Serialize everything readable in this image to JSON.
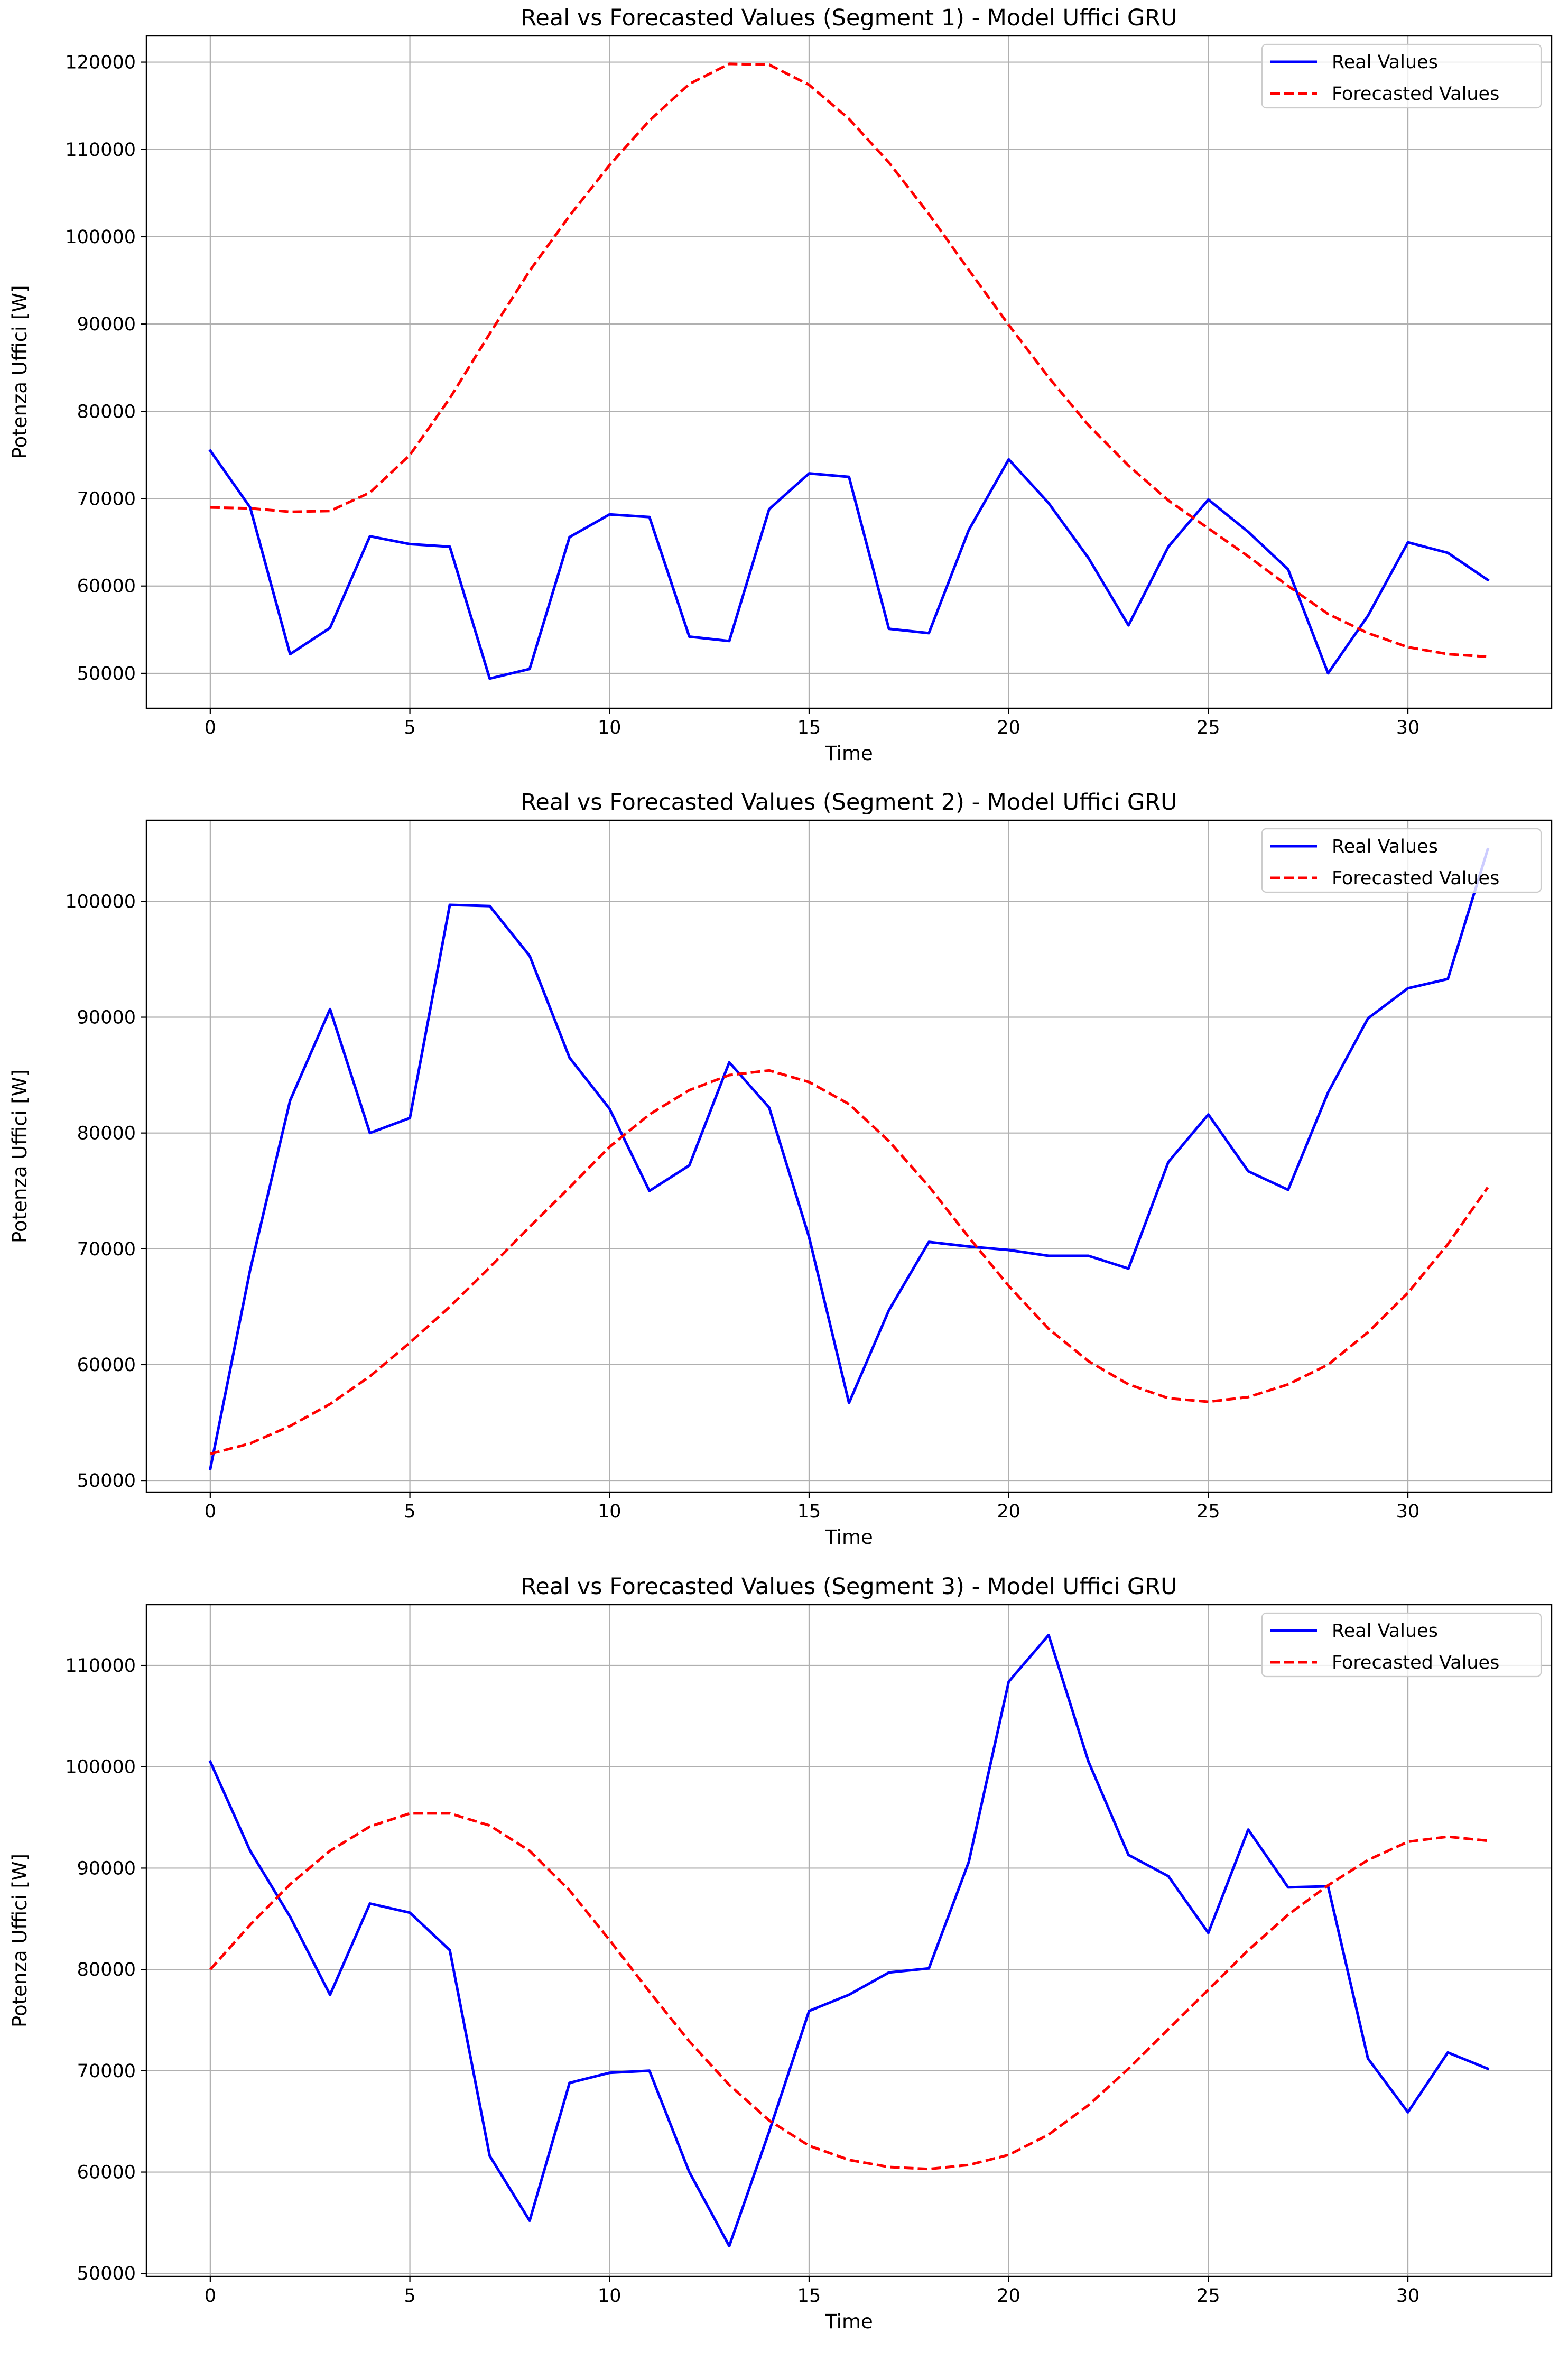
{
  "figure": {
    "colors": {
      "real": "#0000ff",
      "forecast": "#ff0000",
      "grid": "#b0b0b0",
      "axes": "#000000"
    }
  },
  "chart_data": [
    {
      "type": "line",
      "title": "Real vs Forecasted Values (Segment 1) - Model Uffici GRU",
      "xlabel": "Time",
      "ylabel": "Potenza Uffici [W]",
      "xlim": [
        -1.6,
        33.6
      ],
      "ylim": [
        46000,
        123000
      ],
      "xticks": [
        0,
        5,
        10,
        15,
        20,
        25,
        30
      ],
      "xtick_labels": [
        "0",
        "5",
        "10",
        "15",
        "20",
        "25",
        "30"
      ],
      "yticks": [
        50000,
        60000,
        70000,
        80000,
        90000,
        100000,
        110000,
        120000
      ],
      "ytick_labels": [
        "50000",
        "60000",
        "70000",
        "80000",
        "90000",
        "100000",
        "110000",
        "120000"
      ],
      "grid": true,
      "legend": "top-right",
      "x": [
        0,
        1,
        2,
        3,
        4,
        5,
        6,
        7,
        8,
        9,
        10,
        11,
        12,
        13,
        14,
        15,
        16,
        17,
        18,
        19,
        20,
        21,
        22,
        23,
        24,
        25,
        26,
        27,
        28,
        29,
        30,
        31,
        32
      ],
      "series": [
        {
          "name": "Real Values",
          "style": "solid",
          "values": [
            75500,
            69000,
            52200,
            55200,
            65700,
            64800,
            64500,
            49400,
            50500,
            65600,
            68200,
            67900,
            54200,
            53700,
            68800,
            72900,
            72500,
            55100,
            54600,
            66400,
            74500,
            69500,
            63200,
            55500,
            64500,
            69900,
            66200,
            61900,
            50000,
            56600,
            65000,
            63800,
            60700
          ]
        },
        {
          "name": "Forecasted Values",
          "style": "dashed",
          "values": [
            69000,
            68900,
            68500,
            68600,
            70700,
            75000,
            81500,
            88900,
            96100,
            102400,
            108200,
            113300,
            117500,
            119800,
            119700,
            117400,
            113500,
            108500,
            102600,
            96200,
            89900,
            83900,
            78400,
            73800,
            69800,
            66600,
            63400,
            60000,
            56800,
            54600,
            53000,
            52200,
            51900
          ]
        }
      ]
    },
    {
      "type": "line",
      "title": "Real vs Forecasted Values (Segment 2) - Model Uffici GRU",
      "xlabel": "Time",
      "ylabel": "Potenza Uffici [W]",
      "xlim": [
        -1.6,
        33.6
      ],
      "ylim": [
        49000,
        107000
      ],
      "xticks": [
        0,
        5,
        10,
        15,
        20,
        25,
        30
      ],
      "xtick_labels": [
        "0",
        "5",
        "10",
        "15",
        "20",
        "25",
        "30"
      ],
      "yticks": [
        50000,
        60000,
        70000,
        80000,
        90000,
        100000
      ],
      "ytick_labels": [
        "50000",
        "60000",
        "70000",
        "80000",
        "90000",
        "100000"
      ],
      "grid": true,
      "legend": "top-right",
      "x": [
        0,
        1,
        2,
        3,
        4,
        5,
        6,
        7,
        8,
        9,
        10,
        11,
        12,
        13,
        14,
        15,
        16,
        17,
        18,
        19,
        20,
        21,
        22,
        23,
        24,
        25,
        26,
        27,
        28,
        29,
        30,
        31,
        32
      ],
      "series": [
        {
          "name": "Real Values",
          "style": "solid",
          "values": [
            51000,
            68200,
            82800,
            90700,
            80000,
            81300,
            99700,
            99600,
            95300,
            86500,
            82100,
            75000,
            77200,
            86100,
            82200,
            71000,
            56700,
            64700,
            70600,
            70200,
            69900,
            69400,
            69400,
            68300,
            77500,
            81600,
            76700,
            75100,
            83500,
            89900,
            92500,
            93300,
            104500
          ]
        },
        {
          "name": "Forecasted Values",
          "style": "dashed",
          "values": [
            52300,
            53200,
            54700,
            56600,
            59000,
            61900,
            65000,
            68400,
            71900,
            75300,
            78800,
            81600,
            83700,
            85000,
            85400,
            84400,
            82500,
            79300,
            75400,
            71000,
            66800,
            63100,
            60300,
            58300,
            57100,
            56800,
            57200,
            58300,
            60000,
            62800,
            66200,
            70400,
            75300
          ]
        }
      ]
    },
    {
      "type": "line",
      "title": "Real vs Forecasted Values (Segment 3) - Model Uffici GRU",
      "xlabel": "Time",
      "ylabel": "Potenza Uffici [W]",
      "xlim": [
        -1.6,
        33.6
      ],
      "ylim": [
        49700,
        116000
      ],
      "xticks": [
        0,
        5,
        10,
        15,
        20,
        25,
        30
      ],
      "xtick_labels": [
        "0",
        "5",
        "10",
        "15",
        "20",
        "25",
        "30"
      ],
      "yticks": [
        50000,
        60000,
        70000,
        80000,
        90000,
        100000,
        110000
      ],
      "ytick_labels": [
        "50000",
        "60000",
        "70000",
        "80000",
        "90000",
        "100000",
        "110000"
      ],
      "grid": true,
      "legend": "top-right",
      "x": [
        0,
        1,
        2,
        3,
        4,
        5,
        6,
        7,
        8,
        9,
        10,
        11,
        12,
        13,
        14,
        15,
        16,
        17,
        18,
        19,
        20,
        21,
        22,
        23,
        24,
        25,
        26,
        27,
        28,
        29,
        30,
        31,
        32
      ],
      "series": [
        {
          "name": "Real Values",
          "style": "solid",
          "values": [
            100500,
            91700,
            85200,
            77500,
            86500,
            85600,
            81900,
            61600,
            55200,
            68800,
            69800,
            70000,
            60000,
            52700,
            64000,
            75900,
            77500,
            79700,
            80100,
            90600,
            108400,
            113000,
            100500,
            91300,
            89200,
            83600,
            93800,
            88100,
            88200,
            71200,
            65900,
            71800,
            70200
          ]
        },
        {
          "name": "Forecasted Values",
          "style": "dashed",
          "values": [
            80000,
            84400,
            88400,
            91700,
            94100,
            95400,
            95400,
            94200,
            91700,
            87800,
            82900,
            77800,
            72900,
            68600,
            65100,
            62600,
            61200,
            60500,
            60300,
            60700,
            61700,
            63700,
            66600,
            70200,
            74100,
            78000,
            81900,
            85400,
            88300,
            90800,
            92600,
            93100,
            92700
          ]
        }
      ]
    }
  ]
}
